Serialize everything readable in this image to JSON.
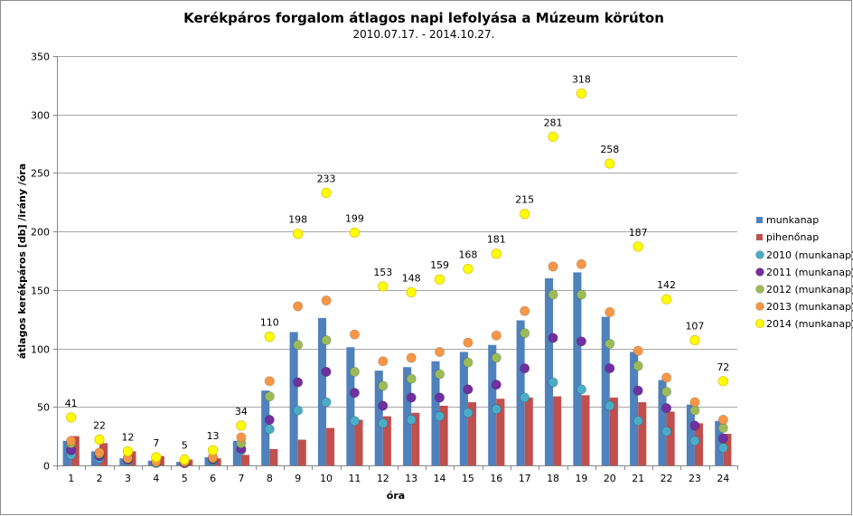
{
  "chart_data": {
    "type": "bar",
    "title": "Kerékpáros forgalom átlagos napi lefolyása a Múzeum körúton",
    "subtitle": "2010.07.17. -  2014.10.27.",
    "xlabel": "óra",
    "ylabel": "átlagos kerékpáros [db] /irány /óra",
    "ylim": [
      0,
      350
    ],
    "yticks": [
      0,
      50,
      100,
      150,
      200,
      250,
      300,
      350
    ],
    "grid": true,
    "legend_position": "right",
    "categories": [
      "1",
      "2",
      "3",
      "4",
      "5",
      "6",
      "7",
      "8",
      "9",
      "10",
      "11",
      "12",
      "13",
      "14",
      "15",
      "16",
      "17",
      "18",
      "19",
      "20",
      "21",
      "22",
      "23",
      "24"
    ],
    "bar_series": [
      {
        "name": "munkanap",
        "color": "#4f81bd",
        "values": [
          21,
          12,
          6,
          4,
          3,
          7,
          21,
          64,
          114,
          126,
          101,
          81,
          84,
          89,
          97,
          103,
          124,
          160,
          165,
          127,
          97,
          73,
          52,
          38
        ]
      },
      {
        "name": "pihenőnap",
        "color": "#c0504d",
        "values": [
          25,
          19,
          12,
          8,
          5,
          6,
          9,
          14,
          22,
          32,
          39,
          42,
          45,
          51,
          54,
          57,
          58,
          59,
          60,
          58,
          54,
          46,
          36,
          27
        ]
      }
    ],
    "point_series": [
      {
        "name": "2010 (munkanap)",
        "color": "#4bacc6",
        "values": [
          9,
          6,
          4,
          2,
          2,
          4,
          13,
          31,
          47,
          54,
          38,
          36,
          39,
          42,
          45,
          48,
          58,
          71,
          65,
          51,
          38,
          29,
          21,
          15
        ]
      },
      {
        "name": "2011 (munkanap)",
        "color": "#7030a0",
        "values": [
          13,
          8,
          5,
          3,
          2,
          5,
          14,
          39,
          71,
          80,
          62,
          51,
          58,
          58,
          65,
          69,
          83,
          109,
          106,
          83,
          64,
          49,
          34,
          23
        ]
      },
      {
        "name": "2012 (munkanap)",
        "color": "#9bbb59",
        "values": [
          19,
          10,
          6,
          3,
          3,
          6,
          19,
          59,
          103,
          107,
          80,
          68,
          74,
          78,
          88,
          92,
          113,
          146,
          146,
          104,
          85,
          63,
          47,
          32
        ]
      },
      {
        "name": "2013 (munkanap)",
        "color": "#f79646",
        "values": [
          21,
          11,
          6,
          3,
          3,
          7,
          24,
          72,
          136,
          141,
          112,
          89,
          92,
          97,
          105,
          111,
          132,
          170,
          172,
          131,
          98,
          75,
          54,
          39
        ]
      },
      {
        "name": "2014 (munkanap)",
        "color": "#ffff00",
        "stroke": "#e6c200",
        "values": [
          41,
          22,
          12,
          7,
          5,
          13,
          34,
          110,
          198,
          233,
          199,
          153,
          148,
          159,
          168,
          181,
          215,
          281,
          318,
          258,
          187,
          142,
          107,
          72
        ],
        "data_labels": [
          "41",
          "22",
          "12",
          "7",
          "5",
          "13",
          "34",
          "110",
          "198",
          "233",
          "199",
          "153",
          "148",
          "159",
          "168",
          "181",
          "215",
          "281",
          "318",
          "258",
          "187",
          "142",
          "107",
          "72"
        ]
      }
    ]
  }
}
